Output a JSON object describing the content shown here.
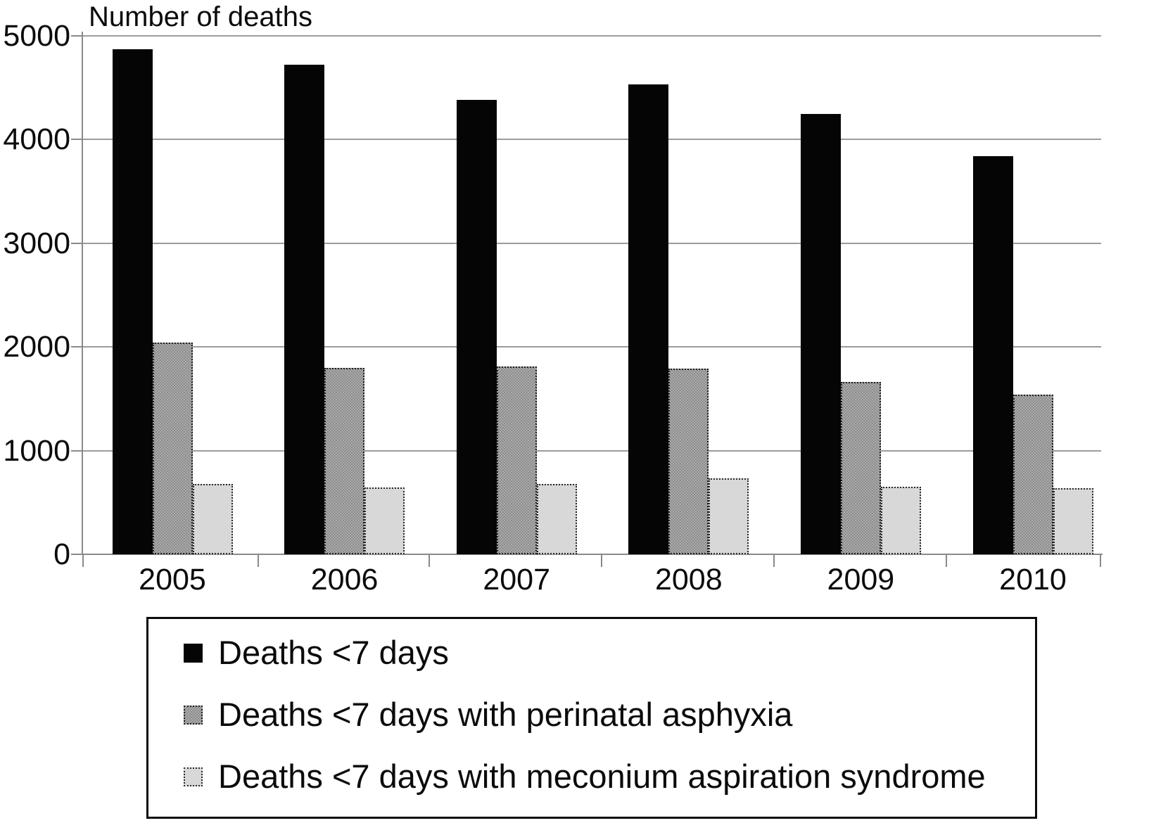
{
  "chart": {
    "title": "Number of deaths"
  },
  "chart_data": {
    "type": "bar",
    "title": "Number of deaths",
    "categories": [
      "2005",
      "2006",
      "2007",
      "2008",
      "2009",
      "2010"
    ],
    "series": [
      {
        "name": "Deaths <7 days",
        "style": "solid-black",
        "values": [
          4870,
          4720,
          4385,
          4530,
          4250,
          3840
        ]
      },
      {
        "name": "Deaths <7 days with perinatal asphyxia",
        "style": "checkered-gray",
        "values": [
          2040,
          1800,
          1810,
          1790,
          1660,
          1540
        ]
      },
      {
        "name": "Deaths <7 days with meconium aspiration syndrome",
        "style": "light-gray",
        "values": [
          680,
          645,
          680,
          730,
          650,
          635
        ]
      }
    ],
    "xlabel": "",
    "ylabel": "Number of deaths",
    "ylim": [
      0,
      5000
    ],
    "y_ticks": [
      0,
      1000,
      2000,
      3000,
      4000,
      5000
    ],
    "grid": true,
    "legend_position": "bottom"
  },
  "colors": {
    "series_black": "#050505",
    "series_gray": "#ababab",
    "series_light_gray": "#d8d8d8",
    "gridline": "#9c9c9c",
    "axis": "#8a8a8a",
    "text": "#0b0b0b",
    "background": "#ffffff"
  }
}
